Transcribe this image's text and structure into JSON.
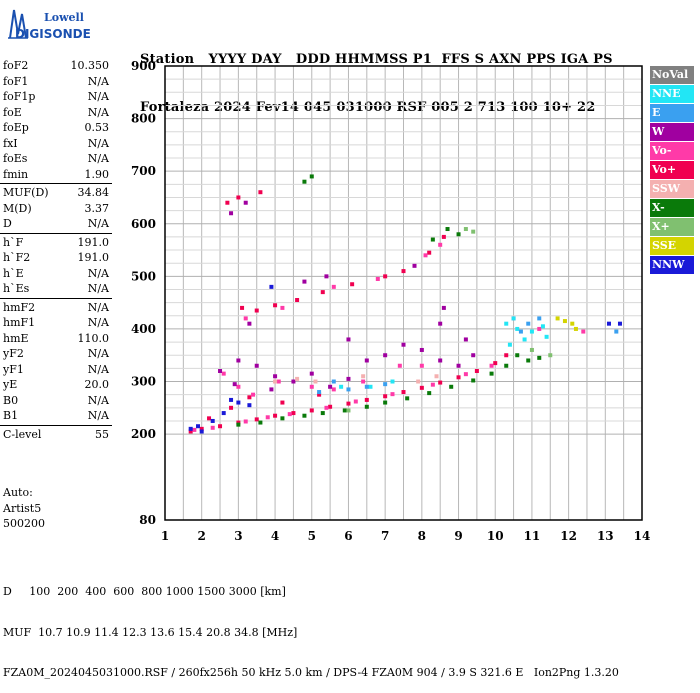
{
  "logo": {
    "top": "Lowell",
    "bottom": "DIGISONDE"
  },
  "header": {
    "labels": "Station   YYYY DAY   DDD HHMMSS P1  FFS S AXN PPS IGA PS",
    "values": "Fortaleza 2024 Fev14 045 031000 RSF 005 2 713 100 10+ 22"
  },
  "params": {
    "group1": [
      {
        "name": "foF2",
        "value": "10.350"
      },
      {
        "name": "foF1",
        "value": "N/A"
      },
      {
        "name": "foF1p",
        "value": "N/A"
      },
      {
        "name": "foE",
        "value": "N/A"
      },
      {
        "name": "foEp",
        "value": "0.53"
      },
      {
        "name": "fxI",
        "value": "N/A"
      },
      {
        "name": "foEs",
        "value": "N/A"
      },
      {
        "name": "fmin",
        "value": "1.90"
      }
    ],
    "group2": [
      {
        "name": "MUF(D)",
        "value": "34.84"
      },
      {
        "name": "M(D)",
        "value": "3.37"
      },
      {
        "name": "D",
        "value": "N/A"
      }
    ],
    "group3": [
      {
        "name": "h`F",
        "value": "191.0"
      },
      {
        "name": "h`F2",
        "value": "191.0"
      },
      {
        "name": "h`E",
        "value": "N/A"
      },
      {
        "name": "h`Es",
        "value": "N/A"
      }
    ],
    "group4": [
      {
        "name": "hmF2",
        "value": "N/A"
      },
      {
        "name": "hmF1",
        "value": "N/A"
      },
      {
        "name": "hmE",
        "value": "110.0"
      },
      {
        "name": "yF2",
        "value": "N/A"
      },
      {
        "name": "yF1",
        "value": "N/A"
      },
      {
        "name": "yE",
        "value": "20.0"
      },
      {
        "name": "B0",
        "value": "N/A"
      },
      {
        "name": "B1",
        "value": "N/A"
      }
    ],
    "group5": [
      {
        "name": "C-level",
        "value": "55"
      }
    ]
  },
  "auto": {
    "line1": "Auto:",
    "line2": "Artist5",
    "line3": "500200"
  },
  "legend": [
    {
      "label": "NoVal",
      "color": "#808080"
    },
    {
      "label": "NNE",
      "color": "#22e6f5"
    },
    {
      "label": "E",
      "color": "#3aa0f0"
    },
    {
      "label": "W",
      "color": "#a000a0"
    },
    {
      "label": "Vo-",
      "color": "#ff3aa8"
    },
    {
      "label": "Vo+",
      "color": "#f00050"
    },
    {
      "label": "SSW",
      "color": "#f4b0b0"
    },
    {
      "label": "X-",
      "color": "#0a7a0a"
    },
    {
      "label": "X+",
      "color": "#80c070"
    },
    {
      "label": "SSE",
      "color": "#d4d400"
    },
    {
      "label": "NNW",
      "color": "#1a1ad8"
    }
  ],
  "footer": {
    "line1": "D     100  200  400  600  800 1000 1500 3000 [km]",
    "line2": "MUF  10.7 10.9 11.4 12.3 13.6 15.4 20.8 34.8 [MHz]",
    "line3": "FZA0M_2024045031000.RSF / 260fx256h 50 kHz 5.0 km / DPS-4 FZA0M 904 / 3.9 S 321.6 E   Ion2Png 1.3.20"
  },
  "chart_data": {
    "type": "scatter",
    "x_ticks": [
      "1",
      "2",
      "3",
      "4",
      "5",
      "6",
      "7",
      "8",
      "9",
      "10",
      "11",
      "12",
      "13",
      "14"
    ],
    "y_ticks": [
      "80",
      "200",
      "300",
      "400",
      "500",
      "600",
      "700",
      "800",
      "900"
    ],
    "xlim": [
      1,
      14
    ],
    "ylim": [
      80,
      900
    ],
    "grid": true,
    "legend_position": "right",
    "series": [
      {
        "color_key": "Vo+",
        "points": [
          [
            1.7,
            205
          ],
          [
            2.0,
            210
          ],
          [
            2.5,
            215
          ],
          [
            3.0,
            222
          ],
          [
            3.5,
            228
          ],
          [
            4.0,
            235
          ],
          [
            4.5,
            240
          ],
          [
            5.0,
            245
          ],
          [
            5.5,
            252
          ],
          [
            6.0,
            258
          ],
          [
            6.5,
            265
          ],
          [
            7.0,
            272
          ],
          [
            7.5,
            280
          ],
          [
            8.0,
            288
          ],
          [
            8.5,
            298
          ],
          [
            9.0,
            308
          ],
          [
            9.5,
            320
          ],
          [
            10.0,
            335
          ],
          [
            10.3,
            350
          ],
          [
            2.2,
            230
          ],
          [
            2.8,
            250
          ],
          [
            3.3,
            270
          ],
          [
            4.2,
            260
          ],
          [
            5.2,
            275
          ],
          [
            3.1,
            440
          ],
          [
            3.5,
            435
          ],
          [
            4.0,
            445
          ],
          [
            4.6,
            455
          ],
          [
            5.3,
            470
          ],
          [
            6.1,
            485
          ],
          [
            7.0,
            500
          ],
          [
            7.5,
            510
          ],
          [
            8.2,
            545
          ],
          [
            8.6,
            575
          ],
          [
            2.7,
            640
          ],
          [
            3.0,
            650
          ],
          [
            3.6,
            660
          ]
        ]
      },
      {
        "color_key": "Vo-",
        "points": [
          [
            1.8,
            208
          ],
          [
            2.3,
            212
          ],
          [
            3.2,
            224
          ],
          [
            3.8,
            232
          ],
          [
            4.4,
            238
          ],
          [
            5.4,
            250
          ],
          [
            6.2,
            262
          ],
          [
            7.2,
            276
          ],
          [
            8.3,
            294
          ],
          [
            9.2,
            314
          ],
          [
            9.9,
            330
          ],
          [
            3.0,
            290
          ],
          [
            4.1,
            300
          ],
          [
            5.0,
            290
          ],
          [
            5.6,
            285
          ],
          [
            6.4,
            300
          ],
          [
            7.4,
            330
          ],
          [
            8.0,
            330
          ],
          [
            2.6,
            315
          ],
          [
            3.4,
            275
          ],
          [
            3.2,
            420
          ],
          [
            4.2,
            440
          ],
          [
            5.6,
            480
          ],
          [
            6.8,
            495
          ],
          [
            8.1,
            540
          ],
          [
            8.5,
            560
          ],
          [
            10.5,
            420
          ],
          [
            11.2,
            400
          ],
          [
            12.4,
            395
          ]
        ]
      },
      {
        "color_key": "W",
        "points": [
          [
            2.5,
            320
          ],
          [
            3.0,
            340
          ],
          [
            3.5,
            330
          ],
          [
            4.0,
            310
          ],
          [
            4.5,
            300
          ],
          [
            5.0,
            315
          ],
          [
            5.5,
            290
          ],
          [
            6.0,
            305
          ],
          [
            6.5,
            340
          ],
          [
            7.0,
            350
          ],
          [
            7.5,
            370
          ],
          [
            8.0,
            360
          ],
          [
            8.5,
            340
          ],
          [
            9.0,
            330
          ],
          [
            9.4,
            350
          ],
          [
            2.9,
            295
          ],
          [
            3.9,
            285
          ],
          [
            8.5,
            410
          ],
          [
            8.6,
            440
          ],
          [
            9.2,
            380
          ],
          [
            6.0,
            380
          ],
          [
            3.3,
            410
          ],
          [
            4.8,
            490
          ],
          [
            5.4,
            500
          ],
          [
            7.8,
            520
          ],
          [
            2.8,
            620
          ],
          [
            3.2,
            640
          ]
        ]
      },
      {
        "color_key": "X-",
        "points": [
          [
            3.0,
            218
          ],
          [
            3.6,
            222
          ],
          [
            4.2,
            230
          ],
          [
            4.8,
            235
          ],
          [
            5.3,
            240
          ],
          [
            5.9,
            245
          ],
          [
            6.5,
            252
          ],
          [
            7.0,
            260
          ],
          [
            7.6,
            268
          ],
          [
            8.2,
            278
          ],
          [
            8.8,
            290
          ],
          [
            9.4,
            302
          ],
          [
            9.9,
            315
          ],
          [
            10.3,
            330
          ],
          [
            10.6,
            350
          ],
          [
            10.9,
            340
          ],
          [
            11.2,
            345
          ],
          [
            8.7,
            590
          ],
          [
            9.0,
            580
          ],
          [
            8.3,
            570
          ],
          [
            4.8,
            680
          ],
          [
            5.0,
            690
          ]
        ]
      },
      {
        "color_key": "NNE",
        "points": [
          [
            10.3,
            410
          ],
          [
            10.5,
            420
          ],
          [
            10.6,
            400
          ],
          [
            10.8,
            380
          ],
          [
            11.0,
            395
          ],
          [
            11.3,
            405
          ],
          [
            11.4,
            385
          ],
          [
            10.4,
            370
          ],
          [
            5.8,
            290
          ],
          [
            6.6,
            290
          ],
          [
            7.2,
            300
          ]
        ]
      },
      {
        "color_key": "E",
        "points": [
          [
            5.2,
            280
          ],
          [
            5.6,
            300
          ],
          [
            6.0,
            285
          ],
          [
            6.5,
            290
          ],
          [
            7.0,
            295
          ],
          [
            10.7,
            395
          ],
          [
            10.9,
            410
          ],
          [
            11.2,
            420
          ],
          [
            13.3,
            395
          ]
        ]
      },
      {
        "color_key": "NNW",
        "points": [
          [
            1.7,
            210
          ],
          [
            1.9,
            215
          ],
          [
            2.0,
            205
          ],
          [
            2.3,
            225
          ],
          [
            2.6,
            240
          ],
          [
            2.8,
            265
          ],
          [
            3.0,
            260
          ],
          [
            3.3,
            255
          ],
          [
            13.1,
            410
          ],
          [
            13.4,
            410
          ],
          [
            3.9,
            480
          ]
        ]
      },
      {
        "color_key": "SSW",
        "points": [
          [
            4.0,
            300
          ],
          [
            4.6,
            305
          ],
          [
            5.1,
            300
          ],
          [
            6.4,
            310
          ],
          [
            7.9,
            300
          ],
          [
            8.4,
            310
          ]
        ]
      },
      {
        "color_key": "X+",
        "points": [
          [
            9.2,
            590
          ],
          [
            9.4,
            585
          ],
          [
            11.0,
            360
          ],
          [
            11.5,
            350
          ],
          [
            6.0,
            245
          ]
        ]
      },
      {
        "color_key": "SSE",
        "points": [
          [
            11.9,
            415
          ],
          [
            12.1,
            410
          ],
          [
            12.2,
            400
          ],
          [
            11.7,
            420
          ]
        ]
      }
    ]
  }
}
